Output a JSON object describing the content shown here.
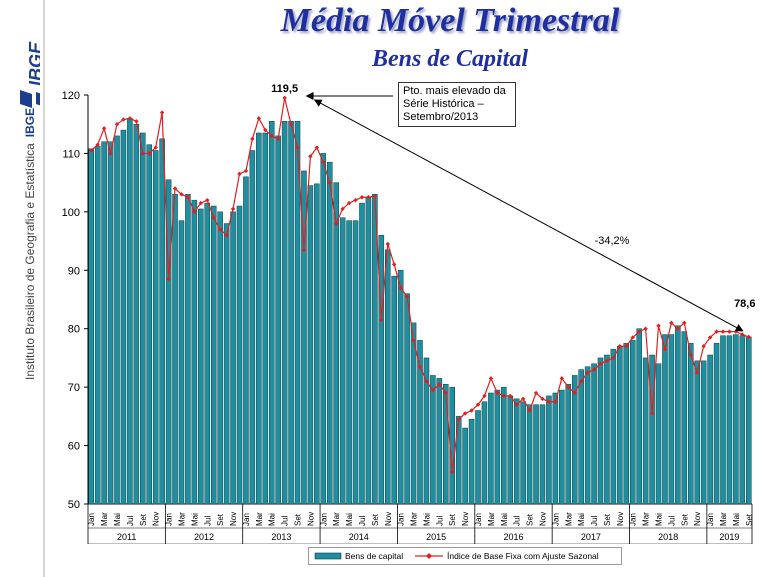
{
  "header": {
    "title": "Média Móvel Trimestral",
    "subtitle": "Bens de Capital"
  },
  "sidebar": {
    "logo_text": "IBGE",
    "institute_name": "Instituto Brasileiro de Geografia e Estatística",
    "short_name": "IBGE"
  },
  "annotations": {
    "peak_note": "Pto. mais elevado da Série Histórica – Setembro/2013",
    "peak_value": "119,5",
    "change": "-34,2%",
    "last_value": "78,6"
  },
  "colors": {
    "bar": "#1f8f9f",
    "line": "#e02020",
    "title": "#1f2f9f"
  },
  "chart_data": {
    "type": "bar",
    "ylim": [
      50,
      120
    ],
    "yticks": [
      50,
      60,
      70,
      80,
      90,
      100,
      110,
      120
    ],
    "years": [
      "2011",
      "2012",
      "2013",
      "2014",
      "2015",
      "2016",
      "2017",
      "2018",
      "2019"
    ],
    "month_labels": [
      "Jan",
      "Mar",
      "Mai",
      "Jul",
      "Set",
      "Nov"
    ],
    "last_month_label": "Set",
    "series": [
      {
        "name": "Bens de capital",
        "type": "bar",
        "values": [
          110.8,
          111.2,
          112.0,
          112.0,
          113.0,
          114.0,
          116.0,
          115.0,
          113.5,
          111.5,
          110.5,
          112.5,
          105.5,
          103.0,
          98.5,
          103.0,
          102.0,
          100.5,
          101.5,
          101.0,
          100.0,
          98.0,
          100.0,
          101.0,
          106.0,
          110.5,
          113.5,
          113.5,
          115.5,
          113.0,
          115.5,
          115.5,
          115.5,
          107.0,
          104.5,
          104.8,
          110.0,
          108.5,
          105.0,
          99.0,
          98.5,
          98.5,
          101.5,
          102.5,
          103.0,
          96.0,
          93.5,
          89.0,
          90.0,
          86.0,
          81.0,
          78.0,
          75.0,
          72.0,
          71.5,
          70.5,
          70.0,
          65.0,
          63.0,
          64.5,
          66.0,
          67.5,
          69.0,
          69.5,
          70.0,
          68.5,
          68.0,
          67.5,
          67.0,
          67.0,
          67.0,
          68.5,
          69.0,
          69.5,
          70.5,
          72.0,
          73.0,
          73.5,
          74.0,
          75.0,
          75.5,
          76.5,
          77.0,
          77.5,
          78.0,
          80.0,
          75.0,
          75.5,
          74.0,
          79.0,
          79.0,
          80.5,
          79.5,
          77.5,
          74.5,
          74.5,
          75.5,
          77.5,
          78.8,
          78.8,
          79.0,
          78.8,
          78.6
        ]
      },
      {
        "name": "Índice de Base Fixa com Ajuste Sazonal",
        "type": "line",
        "values": [
          110.5,
          111.5,
          114.3,
          110.0,
          115.0,
          115.8,
          116.0,
          115.5,
          110.0,
          110.0,
          111.0,
          117.0,
          88.5,
          104.0,
          103.0,
          102.5,
          100.0,
          101.5,
          102.0,
          99.0,
          97.0,
          96.0,
          100.5,
          106.5,
          107.0,
          112.5,
          116.0,
          114.0,
          113.0,
          112.5,
          119.5,
          115.0,
          111.0,
          93.5,
          109.5,
          111.0,
          108.5,
          105.0,
          98.0,
          100.5,
          101.5,
          102.0,
          102.5,
          102.5,
          102.7,
          81.5,
          94.5,
          91.0,
          87.0,
          85.5,
          78.0,
          73.5,
          71.0,
          69.5,
          70.5,
          69.0,
          55.5,
          64.5,
          65.5,
          66.0,
          67.0,
          68.5,
          71.5,
          69.0,
          68.5,
          68.5,
          67.0,
          68.0,
          66.0,
          69.0,
          68.0,
          67.5,
          67.5,
          71.5,
          70.0,
          69.0,
          71.0,
          72.5,
          73.0,
          74.0,
          74.5,
          75.0,
          77.0,
          77.0,
          78.5,
          79.5,
          80.0,
          65.5,
          80.5,
          76.5,
          81.0,
          80.0,
          81.0,
          75.5,
          72.5,
          77.0,
          78.5,
          79.5,
          79.5,
          79.5,
          79.5,
          79.0,
          78.6
        ]
      }
    ]
  }
}
